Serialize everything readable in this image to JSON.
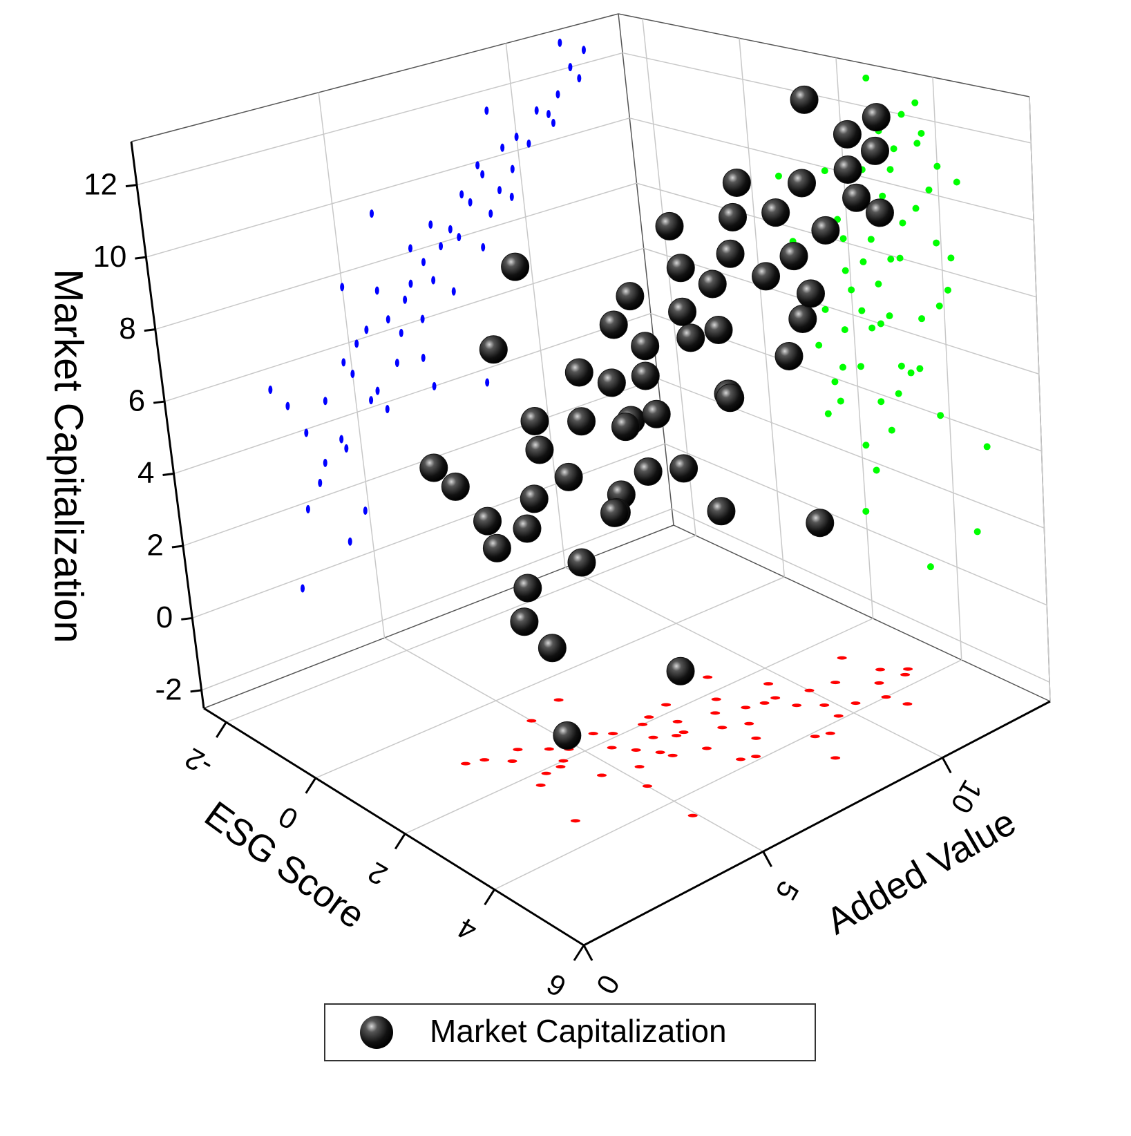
{
  "chart_data": {
    "type": "scatter3d",
    "xlabel": "ESG Score",
    "ylabel": "Added Value",
    "zlabel": "Market Capitalization",
    "xlim": [
      -2.5,
      6
    ],
    "xticks": [
      -2,
      0,
      2,
      4,
      6
    ],
    "ylim": [
      0,
      13
    ],
    "yticks": [
      0,
      5,
      10
    ],
    "zlim": [
      -2.5,
      13.2
    ],
    "zticks": [
      -2,
      0,
      2,
      4,
      6,
      8,
      10,
      12
    ],
    "grid": true,
    "legend": "bottom",
    "projection_colors": {
      "left_wall": "#0000ff",
      "right_wall": "#00ff00",
      "floor": "#ff0000"
    },
    "series": [
      {
        "name": "Market Capitalization",
        "color": "#111111",
        "x": [
          2.1,
          3.4,
          1.5,
          2.8,
          3.9,
          2.2,
          1.8,
          3.1,
          2.6,
          4.2,
          1.2,
          2.9,
          3.5,
          2.4,
          1.9,
          3.8,
          2.7,
          3.2,
          1.6,
          2.3,
          4.0,
          2.5,
          3.0,
          1.4,
          3.6,
          2.0,
          2.8,
          3.3,
          1.7,
          4.4,
          2.6,
          3.1,
          2.2,
          3.7,
          1.9,
          2.4,
          3.5,
          2.9,
          1.3,
          4.1,
          2.7,
          3.0,
          2.1,
          3.6,
          1.8,
          2.5,
          3.9,
          2.3,
          3.2,
          1.6,
          0.6,
          4.8,
          2.0,
          3.4,
          2.8,
          1.1,
          3.8,
          2.6,
          4.5,
          0.8
        ],
        "y": [
          4.2,
          5.0,
          3.6,
          6.1,
          7.4,
          5.5,
          4.8,
          8.2,
          6.8,
          9.1,
          3.2,
          7.7,
          9.8,
          6.4,
          5.9,
          10.3,
          8.6,
          9.4,
          4.5,
          7.2,
          10.9,
          8.0,
          10.0,
          5.2,
          11.2,
          6.6,
          9.0,
          11.6,
          5.6,
          11.0,
          7.0,
          10.6,
          8.4,
          11.8,
          6.9,
          9.6,
          7.9,
          5.4,
          4.0,
          8.8,
          4.6,
          6.2,
          3.8,
          12.0,
          7.5,
          5.8,
          9.7,
          3.4,
          6.9,
          8.9,
          6.0,
          8.5,
          4.4,
          3.0,
          9.3,
          2.8,
          7.1,
          11.4,
          4.9,
          5.0
        ],
        "z": [
          4.6,
          5.1,
          3.9,
          6.3,
          7.0,
          6.2,
          5.5,
          8.0,
          7.1,
          8.4,
          4.8,
          7.9,
          9.5,
          5.8,
          7.2,
          10.1,
          8.9,
          9.0,
          3.4,
          7.6,
          10.8,
          8.3,
          10.4,
          5.9,
          11.3,
          6.7,
          9.6,
          12.0,
          4.4,
          10.5,
          6.0,
          11.0,
          9.2,
          11.6,
          8.1,
          10.2,
          6.5,
          4.2,
          2.9,
          7.5,
          3.1,
          5.0,
          2.4,
          12.4,
          8.6,
          3.8,
          8.7,
          1.8,
          4.9,
          9.9,
          9.4,
          3.6,
          0.5,
          -0.3,
          11.4,
          5.4,
          4.0,
          12.8,
          1.2,
          7.6
        ]
      }
    ]
  }
}
